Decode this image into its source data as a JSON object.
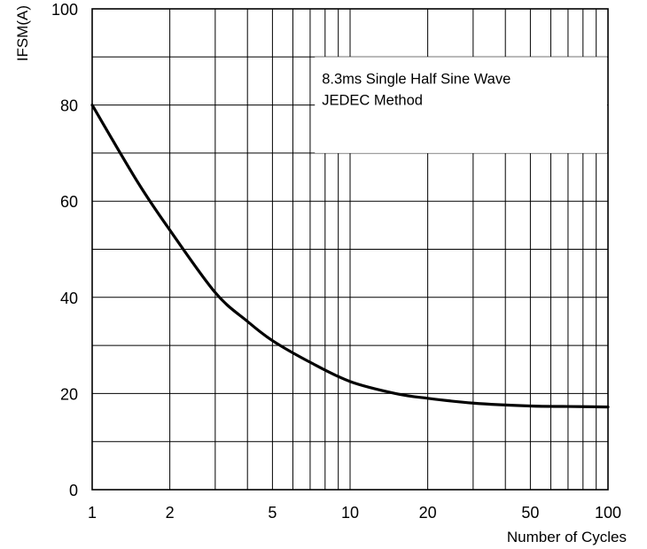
{
  "chart_data": {
    "type": "line",
    "xscale": "log",
    "xlim": [
      1,
      100
    ],
    "ylim": [
      0,
      100
    ],
    "xlabel": "Number of Cycles",
    "ylabel": "IFSM(A)",
    "xtick_labels": [
      "1",
      "2",
      "5",
      "10",
      "20",
      "50",
      "100"
    ],
    "ytick_labels": [
      "0",
      "20",
      "40",
      "60",
      "80",
      "100"
    ],
    "annotation": [
      "8.3ms Single Half Sine Wave",
      "JEDEC Method"
    ],
    "grid": true,
    "series": [
      {
        "x": [
          1,
          1.5,
          2,
          3,
          4,
          5,
          7,
          10,
          15,
          20,
          30,
          50,
          70,
          100
        ],
        "y": [
          80,
          64,
          54,
          41,
          35,
          31,
          26.5,
          22.5,
          20,
          19,
          18,
          17.4,
          17.3,
          17.2
        ]
      }
    ]
  }
}
